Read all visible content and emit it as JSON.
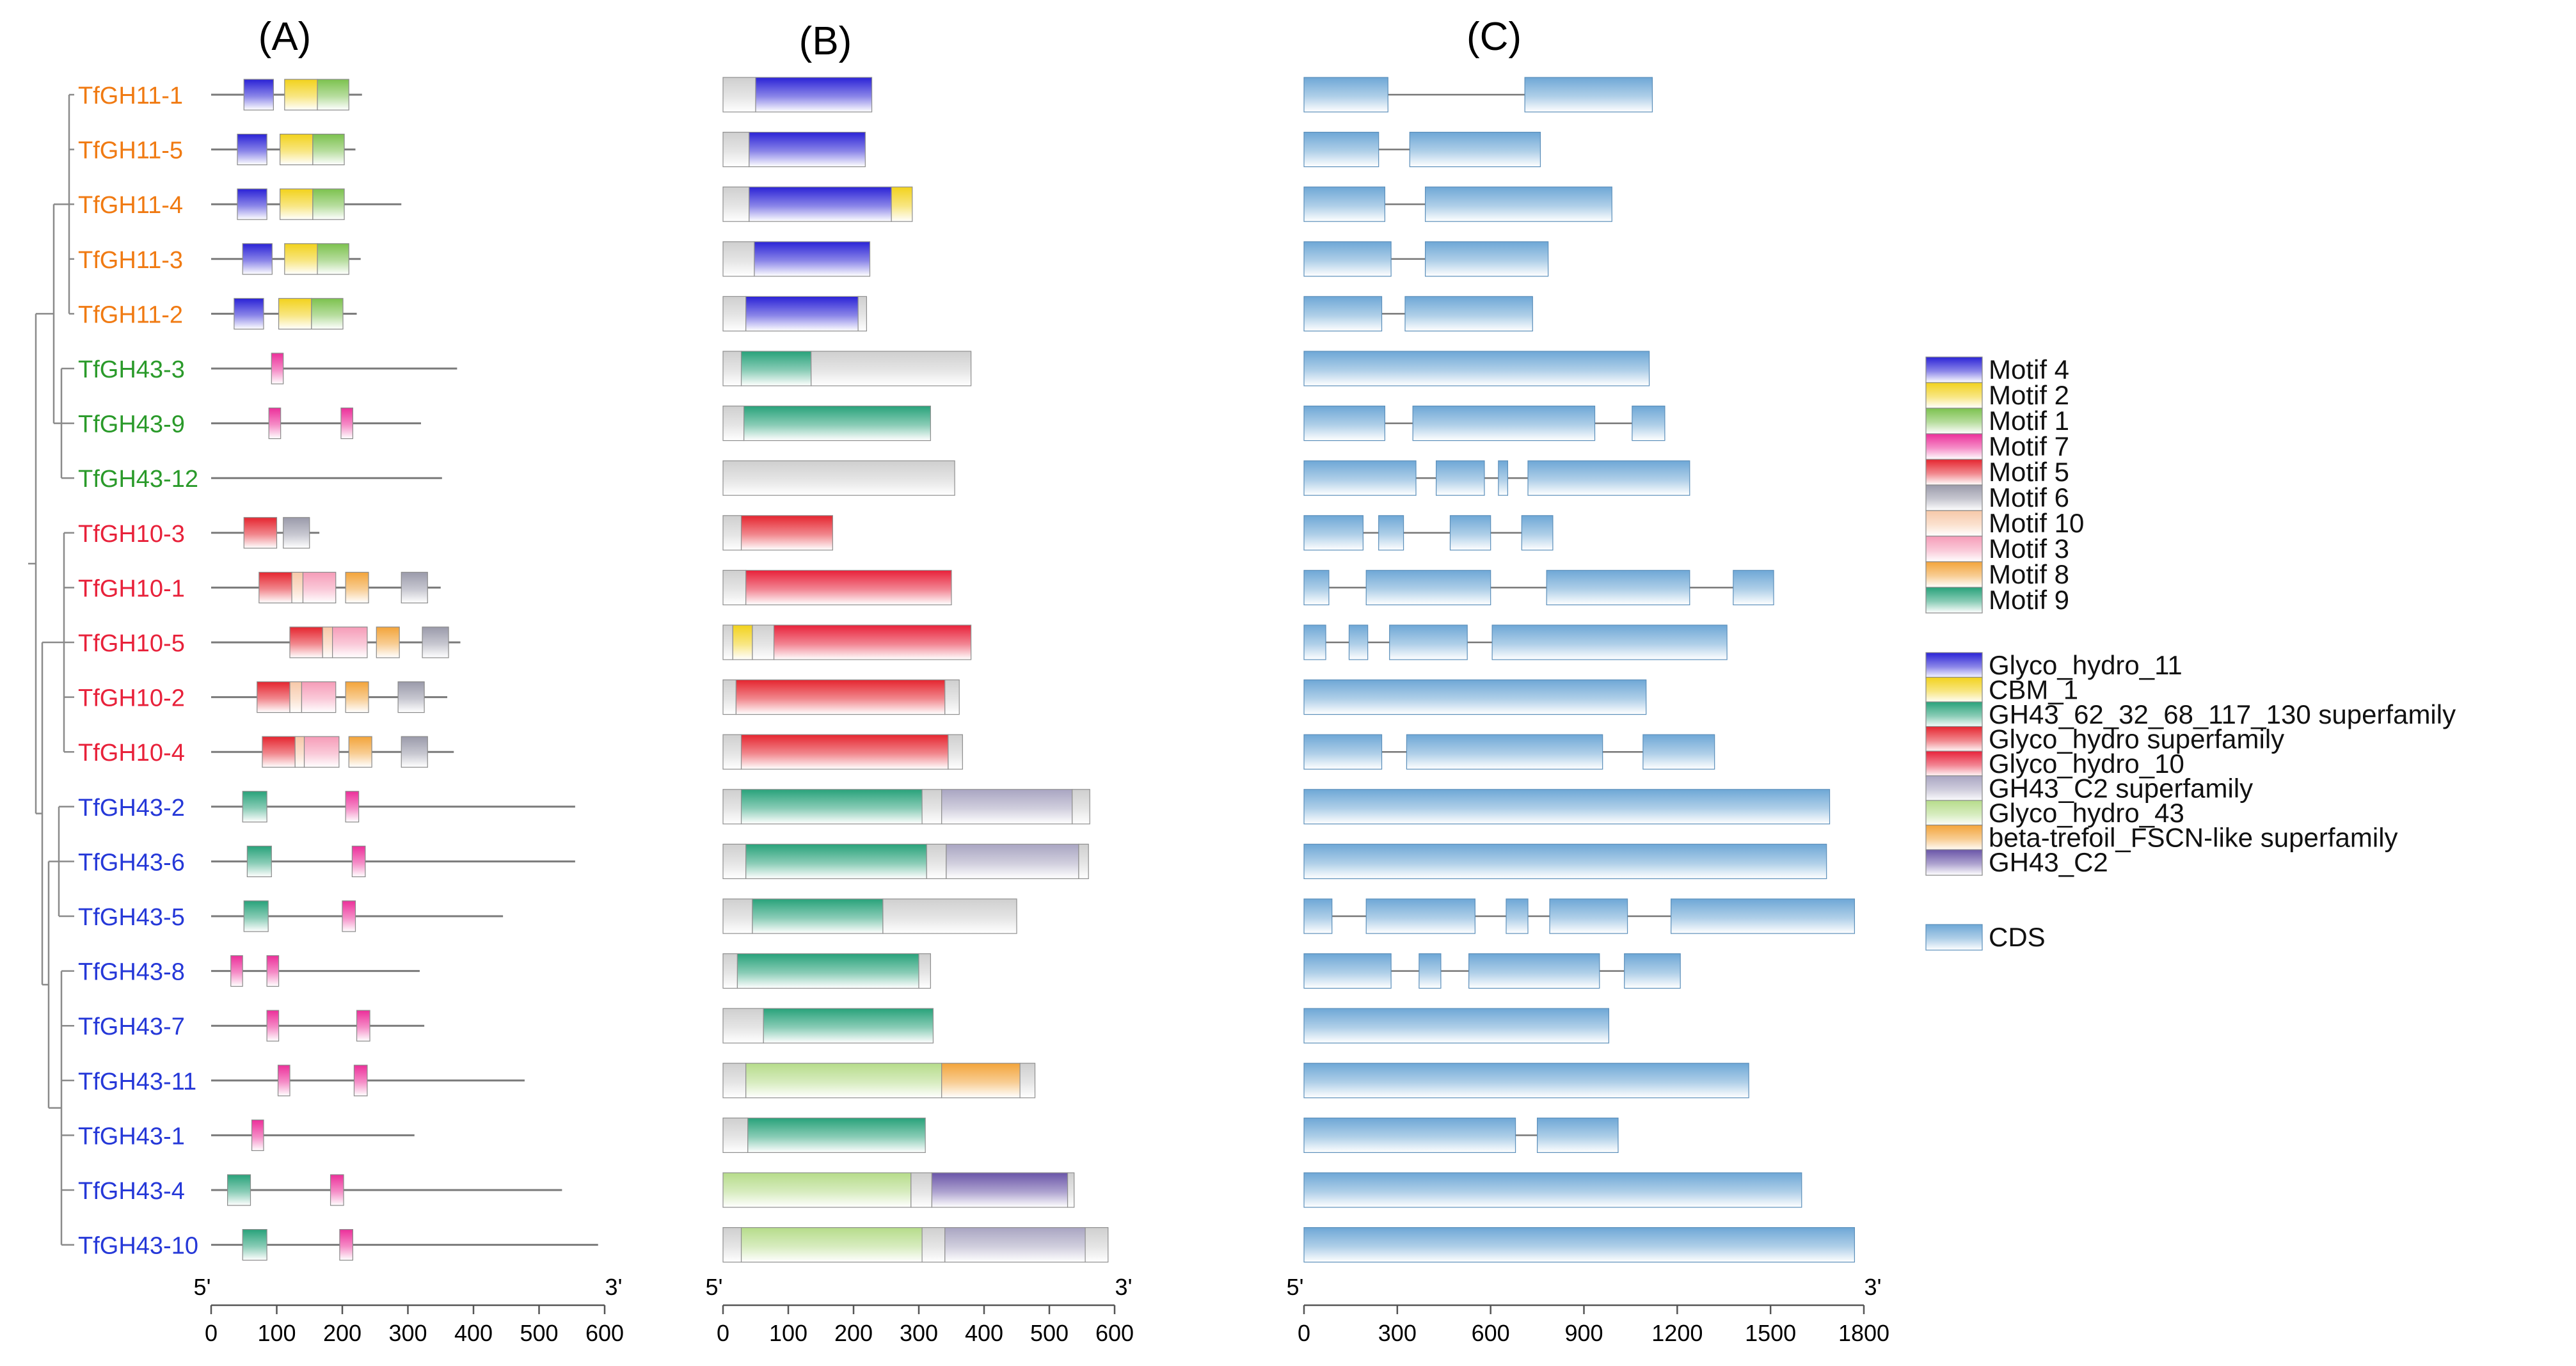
{
  "panels": {
    "A": {
      "label": "(A)"
    },
    "B": {
      "label": "(B)"
    },
    "C": {
      "label": "(C)"
    }
  },
  "axes": {
    "A": {
      "start_label": "5'",
      "end_label": "3'",
      "ticks": [
        0,
        100,
        200,
        300,
        400,
        500,
        600
      ],
      "max": 600
    },
    "B": {
      "start_label": "5'",
      "end_label": "3'",
      "ticks": [
        0,
        100,
        200,
        300,
        400,
        500,
        600
      ],
      "max": 600
    },
    "C": {
      "start_label": "5'",
      "end_label": "3'",
      "ticks": [
        0,
        300,
        600,
        900,
        1200,
        1500,
        1800
      ],
      "max": 1800
    }
  },
  "clade_colors": {
    "GH11": "#f07a12",
    "GH43a": "#2a9a2a",
    "GH10": "#e8213a",
    "GH43b": "#2538d8"
  },
  "colors": {
    "motif_4": "#2a22d6",
    "motif_2": "#f2d21c",
    "motif_1": "#7cc24e",
    "motif_7": "#ec2f9a",
    "motif_5": "#e5252f",
    "motif_6": "#9a9aaa",
    "motif_10": "#f7c8a8",
    "motif_3": "#f69cb8",
    "motif_8": "#f3a43a",
    "motif_9": "#28a27a",
    "Glyco_hydro_11": "#2a22d6",
    "CBM_1": "#f2d21c",
    "GH43_62_32_68_117_130": "#28a27a",
    "Glyco_hydro_sf": "#e5252f",
    "Glyco_hydro_10": "#e8213a",
    "GH43_C2_sf": "#a9a5c2",
    "Glyco_hydro_43": "#b6dc8a",
    "beta_trefoil": "#f3a43a",
    "GH43_C2": "#6a55a8",
    "CDS": "#6ea7d6",
    "neutral": "#cfcfcf"
  },
  "legend": {
    "motifs": [
      {
        "label": "Motif 4",
        "color_key": "motif_4"
      },
      {
        "label": "Motif 2",
        "color_key": "motif_2"
      },
      {
        "label": "Motif 1",
        "color_key": "motif_1"
      },
      {
        "label": "Motif 7",
        "color_key": "motif_7"
      },
      {
        "label": "Motif 5",
        "color_key": "motif_5"
      },
      {
        "label": "Motif 6",
        "color_key": "motif_6"
      },
      {
        "label": "Motif 10",
        "color_key": "motif_10"
      },
      {
        "label": "Motif 3",
        "color_key": "motif_3"
      },
      {
        "label": "Motif 8",
        "color_key": "motif_8"
      },
      {
        "label": "Motif 9",
        "color_key": "motif_9"
      }
    ],
    "domains": [
      {
        "label": "Glyco_hydro_11",
        "color_key": "Glyco_hydro_11"
      },
      {
        "label": "CBM_1",
        "color_key": "CBM_1"
      },
      {
        "label": "GH43_62_32_68_117_130 superfamily",
        "color_key": "GH43_62_32_68_117_130"
      },
      {
        "label": "Glyco_hydro superfamily",
        "color_key": "Glyco_hydro_sf"
      },
      {
        "label": "Glyco_hydro_10",
        "color_key": "Glyco_hydro_10"
      },
      {
        "label": "GH43_C2 superfamily",
        "color_key": "GH43_C2_sf"
      },
      {
        "label": "Glyco_hydro_43",
        "color_key": "Glyco_hydro_43"
      },
      {
        "label": "beta-trefoil_FSCN-like superfamily",
        "color_key": "beta_trefoil"
      },
      {
        "label": "GH43_C2",
        "color_key": "GH43_C2"
      }
    ],
    "cds": {
      "label": "CDS",
      "color_key": "CDS"
    }
  },
  "genes": [
    {
      "name": "TfGH11-1",
      "clade": "GH11",
      "length": 230,
      "motifs": [
        [
          50,
          95,
          "motif_4"
        ],
        [
          112,
          162,
          "motif_2"
        ],
        [
          162,
          210,
          "motif_1"
        ]
      ],
      "domains": [
        [
          0,
          50,
          "neutral"
        ],
        [
          50,
          228,
          "Glyco_hydro_11"
        ]
      ],
      "cds": [
        [
          0,
          270
        ],
        [
          710,
          1120
        ]
      ]
    },
    {
      "name": "TfGH11-5",
      "clade": "GH11",
      "length": 220,
      "motifs": [
        [
          40,
          85,
          "motif_4"
        ],
        [
          105,
          155,
          "motif_2"
        ],
        [
          155,
          203,
          "motif_1"
        ]
      ],
      "domains": [
        [
          0,
          40,
          "neutral"
        ],
        [
          40,
          218,
          "Glyco_hydro_11"
        ]
      ],
      "cds": [
        [
          0,
          240
        ],
        [
          340,
          760
        ]
      ]
    },
    {
      "name": "TfGH11-4",
      "clade": "GH11",
      "length": 290,
      "motifs": [
        [
          40,
          85,
          "motif_4"
        ],
        [
          105,
          155,
          "motif_2"
        ],
        [
          155,
          203,
          "motif_1"
        ]
      ],
      "domains": [
        [
          0,
          40,
          "neutral"
        ],
        [
          40,
          258,
          "Glyco_hydro_11"
        ],
        [
          258,
          290,
          "CBM_1"
        ]
      ],
      "cds": [
        [
          0,
          260
        ],
        [
          390,
          990
        ]
      ]
    },
    {
      "name": "TfGH11-3",
      "clade": "GH11",
      "length": 228,
      "motifs": [
        [
          48,
          93,
          "motif_4"
        ],
        [
          112,
          162,
          "motif_2"
        ],
        [
          162,
          210,
          "motif_1"
        ]
      ],
      "domains": [
        [
          0,
          48,
          "neutral"
        ],
        [
          48,
          225,
          "Glyco_hydro_11"
        ]
      ],
      "cds": [
        [
          0,
          280
        ],
        [
          390,
          785
        ]
      ]
    },
    {
      "name": "TfGH11-2",
      "clade": "GH11",
      "length": 222,
      "motifs": [
        [
          35,
          80,
          "motif_4"
        ],
        [
          103,
          153,
          "motif_2"
        ],
        [
          153,
          201,
          "motif_1"
        ]
      ],
      "domains": [
        [
          0,
          35,
          "neutral"
        ],
        [
          35,
          207,
          "Glyco_hydro_11"
        ],
        [
          207,
          220,
          "neutral"
        ]
      ],
      "cds": [
        [
          0,
          250
        ],
        [
          325,
          735
        ]
      ]
    },
    {
      "name": "TfGH43-3",
      "clade": "GH43a",
      "length": 375,
      "motifs": [
        [
          92,
          110,
          "motif_7"
        ]
      ],
      "domains": [
        [
          0,
          28,
          "neutral"
        ],
        [
          28,
          135,
          "GH43_62_32_68_117_130"
        ],
        [
          135,
          380,
          "neutral"
        ]
      ],
      "cds": [
        [
          0,
          1110
        ]
      ]
    },
    {
      "name": "TfGH43-9",
      "clade": "GH43a",
      "length": 320,
      "motifs": [
        [
          88,
          106,
          "motif_7"
        ],
        [
          198,
          216,
          "motif_7"
        ]
      ],
      "domains": [
        [
          0,
          32,
          "neutral"
        ],
        [
          32,
          318,
          "GH43_62_32_68_117_130"
        ]
      ],
      "cds": [
        [
          0,
          260
        ],
        [
          350,
          935
        ],
        [
          1055,
          1160
        ]
      ]
    },
    {
      "name": "TfGH43-12",
      "clade": "GH43a",
      "length": 352,
      "motifs": [],
      "domains": [
        [
          0,
          355,
          "neutral"
        ]
      ],
      "cds": [
        [
          0,
          360
        ],
        [
          425,
          580
        ],
        [
          625,
          655
        ],
        [
          720,
          1240
        ]
      ]
    },
    {
      "name": "TfGH10-3",
      "clade": "GH10",
      "length": 165,
      "motifs": [
        [
          50,
          100,
          "motif_5"
        ],
        [
          110,
          150,
          "motif_6"
        ]
      ],
      "domains": [
        [
          0,
          28,
          "neutral"
        ],
        [
          28,
          168,
          "Glyco_hydro_sf"
        ]
      ],
      "cds": [
        [
          0,
          190
        ],
        [
          240,
          320
        ],
        [
          470,
          600
        ],
        [
          700,
          800
        ]
      ]
    },
    {
      "name": "TfGH10-1",
      "clade": "GH10",
      "length": 350,
      "motifs": [
        [
          73,
          123,
          "motif_5"
        ],
        [
          123,
          140,
          "motif_10"
        ],
        [
          140,
          190,
          "motif_3"
        ],
        [
          205,
          240,
          "motif_8"
        ],
        [
          290,
          330,
          "motif_6"
        ]
      ],
      "domains": [
        [
          0,
          35,
          "neutral"
        ],
        [
          35,
          350,
          "Glyco_hydro_10"
        ]
      ],
      "cds": [
        [
          0,
          80
        ],
        [
          200,
          600
        ],
        [
          780,
          1240
        ],
        [
          1380,
          1510
        ]
      ]
    },
    {
      "name": "TfGH10-5",
      "clade": "GH10",
      "length": 380,
      "motifs": [
        [
          120,
          170,
          "motif_5"
        ],
        [
          170,
          185,
          "motif_10"
        ],
        [
          185,
          238,
          "motif_3"
        ],
        [
          252,
          287,
          "motif_8"
        ],
        [
          322,
          362,
          "motif_6"
        ]
      ],
      "domains": [
        [
          0,
          15,
          "neutral"
        ],
        [
          15,
          45,
          "CBM_1"
        ],
        [
          45,
          78,
          "neutral"
        ],
        [
          78,
          380,
          "Glyco_hydro_10"
        ]
      ],
      "cds": [
        [
          0,
          70
        ],
        [
          145,
          205
        ],
        [
          275,
          525
        ],
        [
          605,
          1360
        ]
      ]
    },
    {
      "name": "TfGH10-2",
      "clade": "GH10",
      "length": 360,
      "motifs": [
        [
          70,
          120,
          "motif_5"
        ],
        [
          120,
          138,
          "motif_10"
        ],
        [
          138,
          190,
          "motif_3"
        ],
        [
          205,
          240,
          "motif_8"
        ],
        [
          285,
          325,
          "motif_6"
        ]
      ],
      "domains": [
        [
          0,
          20,
          "neutral"
        ],
        [
          20,
          340,
          "Glyco_hydro_sf"
        ],
        [
          340,
          362,
          "neutral"
        ]
      ],
      "cds": [
        [
          0,
          1100
        ]
      ]
    },
    {
      "name": "TfGH10-4",
      "clade": "GH10",
      "length": 370,
      "motifs": [
        [
          78,
          128,
          "motif_5"
        ],
        [
          128,
          142,
          "motif_10"
        ],
        [
          142,
          195,
          "motif_3"
        ],
        [
          210,
          245,
          "motif_8"
        ],
        [
          290,
          330,
          "motif_6"
        ]
      ],
      "domains": [
        [
          0,
          28,
          "neutral"
        ],
        [
          28,
          345,
          "Glyco_hydro_sf"
        ],
        [
          345,
          367,
          "neutral"
        ]
      ],
      "cds": [
        [
          0,
          250
        ],
        [
          330,
          960
        ],
        [
          1090,
          1320
        ]
      ]
    },
    {
      "name": "TfGH43-2",
      "clade": "GH43b",
      "length": 555,
      "motifs": [
        [
          48,
          85,
          "motif_9"
        ],
        [
          205,
          225,
          "motif_7"
        ]
      ],
      "domains": [
        [
          0,
          28,
          "neutral"
        ],
        [
          28,
          305,
          "GH43_62_32_68_117_130"
        ],
        [
          305,
          335,
          "neutral"
        ],
        [
          335,
          535,
          "GH43_C2_sf"
        ],
        [
          535,
          562,
          "neutral"
        ]
      ],
      "cds": [
        [
          0,
          1690
        ]
      ]
    },
    {
      "name": "TfGH43-6",
      "clade": "GH43b",
      "length": 555,
      "motifs": [
        [
          55,
          92,
          "motif_9"
        ],
        [
          215,
          235,
          "motif_7"
        ]
      ],
      "domains": [
        [
          0,
          35,
          "neutral"
        ],
        [
          35,
          312,
          "GH43_62_32_68_117_130"
        ],
        [
          312,
          342,
          "neutral"
        ],
        [
          342,
          545,
          "GH43_C2_sf"
        ],
        [
          545,
          560,
          "neutral"
        ]
      ],
      "cds": [
        [
          0,
          1680
        ]
      ]
    },
    {
      "name": "TfGH43-5",
      "clade": "GH43b",
      "length": 445,
      "motifs": [
        [
          50,
          87,
          "motif_9"
        ],
        [
          200,
          220,
          "motif_7"
        ]
      ],
      "domains": [
        [
          0,
          45,
          "neutral"
        ],
        [
          45,
          245,
          "GH43_62_32_68_117_130"
        ],
        [
          245,
          450,
          "neutral"
        ]
      ],
      "cds": [
        [
          0,
          90
        ],
        [
          200,
          550
        ],
        [
          650,
          720
        ],
        [
          790,
          1040
        ],
        [
          1180,
          1770
        ]
      ]
    },
    {
      "name": "TfGH43-8",
      "clade": "GH43b",
      "length": 318,
      "motifs": [
        [
          30,
          48,
          "motif_7"
        ],
        [
          85,
          103,
          "motif_7"
        ]
      ],
      "domains": [
        [
          0,
          22,
          "neutral"
        ],
        [
          22,
          300,
          "GH43_62_32_68_117_130"
        ],
        [
          300,
          318,
          "neutral"
        ]
      ],
      "cds": [
        [
          0,
          280
        ],
        [
          370,
          440
        ],
        [
          530,
          950
        ],
        [
          1030,
          1210
        ]
      ]
    },
    {
      "name": "TfGH43-7",
      "clade": "GH43b",
      "length": 325,
      "motifs": [
        [
          85,
          103,
          "motif_7"
        ],
        [
          222,
          242,
          "motif_7"
        ]
      ],
      "domains": [
        [
          0,
          62,
          "neutral"
        ],
        [
          62,
          322,
          "GH43_62_32_68_117_130"
        ]
      ],
      "cds": [
        [
          0,
          980
        ]
      ]
    },
    {
      "name": "TfGH43-11",
      "clade": "GH43b",
      "length": 478,
      "motifs": [
        [
          102,
          120,
          "motif_7"
        ],
        [
          218,
          238,
          "motif_7"
        ]
      ],
      "domains": [
        [
          0,
          35,
          "neutral"
        ],
        [
          35,
          335,
          "Glyco_hydro_43"
        ],
        [
          335,
          455,
          "beta_trefoil"
        ],
        [
          455,
          478,
          "neutral"
        ]
      ],
      "cds": [
        [
          0,
          1430
        ]
      ]
    },
    {
      "name": "TfGH43-1",
      "clade": "GH43b",
      "length": 310,
      "motifs": [
        [
          62,
          80,
          "motif_7"
        ]
      ],
      "domains": [
        [
          0,
          38,
          "neutral"
        ],
        [
          38,
          310,
          "GH43_62_32_68_117_130"
        ]
      ],
      "cds": [
        [
          0,
          680
        ],
        [
          750,
          1010
        ]
      ]
    },
    {
      "name": "TfGH43-4",
      "clade": "GH43b",
      "length": 535,
      "motifs": [
        [
          25,
          60,
          "motif_9"
        ],
        [
          182,
          202,
          "motif_7"
        ]
      ],
      "domains": [
        [
          0,
          288,
          "Glyco_hydro_43"
        ],
        [
          288,
          320,
          "neutral"
        ],
        [
          320,
          528,
          "GH43_C2"
        ],
        [
          528,
          538,
          "neutral"
        ]
      ],
      "cds": [
        [
          0,
          1600
        ]
      ]
    },
    {
      "name": "TfGH43-10",
      "clade": "GH43b",
      "length": 590,
      "motifs": [
        [
          48,
          85,
          "motif_9"
        ],
        [
          196,
          216,
          "motif_7"
        ]
      ],
      "domains": [
        [
          0,
          28,
          "neutral"
        ],
        [
          28,
          305,
          "Glyco_hydro_43"
        ],
        [
          305,
          340,
          "neutral"
        ],
        [
          340,
          555,
          "GH43_C2_sf"
        ],
        [
          555,
          590,
          "neutral"
        ]
      ],
      "cds": [
        [
          0,
          1770
        ]
      ]
    }
  ]
}
